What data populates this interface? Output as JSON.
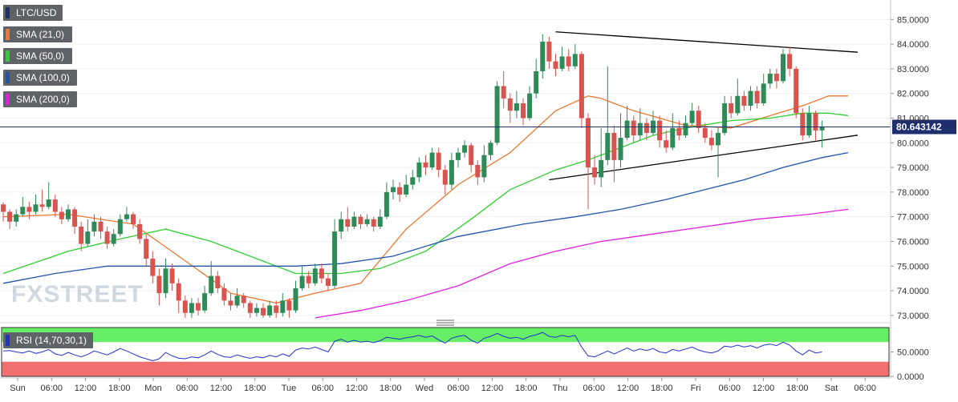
{
  "chart_data": {
    "type": "candlestick",
    "symbol": "LTC/USD",
    "last_price": "80.643142",
    "ylim": [
      72.8,
      85.4
    ],
    "yticks": [
      "85.0000",
      "84.0000",
      "83.0000",
      "82.0000",
      "81.0000",
      "80.0000",
      "79.0000",
      "78.0000",
      "77.0000",
      "76.0000",
      "75.0000",
      "74.0000",
      "73.0000"
    ],
    "x_ticks": [
      "Sun",
      "06:00",
      "12:00",
      "18:00",
      "Mon",
      "06:00",
      "12:00",
      "18:00",
      "Tue",
      "06:00",
      "12:00",
      "18:00",
      "Wed",
      "06:00",
      "12:00",
      "18:00",
      "Thu",
      "06:00",
      "12:00",
      "18:00",
      "Fri",
      "06:00",
      "12:00",
      "18:00",
      "Sat",
      "06:00"
    ],
    "candles": [
      [
        77.5,
        77.2,
        77.6,
        76.8
      ],
      [
        77.2,
        76.8,
        77.3,
        76.5
      ],
      [
        76.8,
        77.1,
        77.3,
        76.6
      ],
      [
        77.1,
        77.4,
        77.8,
        77.0
      ],
      [
        77.4,
        77.2,
        77.6,
        76.9
      ],
      [
        77.2,
        77.5,
        77.9,
        77.1
      ],
      [
        77.5,
        77.4,
        78.1,
        77.2
      ],
      [
        77.4,
        77.7,
        78.4,
        77.3
      ],
      [
        77.7,
        77.2,
        77.9,
        77.0
      ],
      [
        77.2,
        76.9,
        77.4,
        76.7
      ],
      [
        76.9,
        77.3,
        77.5,
        76.8
      ],
      [
        77.3,
        76.6,
        77.4,
        76.3
      ],
      [
        76.6,
        75.9,
        76.8,
        75.6
      ],
      [
        75.9,
        76.4,
        76.9,
        75.8
      ],
      [
        76.4,
        76.8,
        77.1,
        76.2
      ],
      [
        76.8,
        76.4,
        77.0,
        76.1
      ],
      [
        76.4,
        75.9,
        76.6,
        75.7
      ],
      [
        75.9,
        76.3,
        76.5,
        75.8
      ],
      [
        76.3,
        76.9,
        77.1,
        76.2
      ],
      [
        76.9,
        77.1,
        77.4,
        76.8
      ],
      [
        77.1,
        76.7,
        77.2,
        76.5
      ],
      [
        76.7,
        76.1,
        76.9,
        75.9
      ],
      [
        76.1,
        75.3,
        76.3,
        75.0
      ],
      [
        75.3,
        74.6,
        75.6,
        74.3
      ],
      [
        74.6,
        73.9,
        74.9,
        73.4
      ],
      [
        73.9,
        74.9,
        75.3,
        73.7
      ],
      [
        74.9,
        74.3,
        75.1,
        74.0
      ],
      [
        74.3,
        73.6,
        74.5,
        73.1
      ],
      [
        73.6,
        73.1,
        73.8,
        72.9
      ],
      [
        73.1,
        73.5,
        73.7,
        72.9
      ],
      [
        73.5,
        73.2,
        73.7,
        73.0
      ],
      [
        73.2,
        73.9,
        74.2,
        73.1
      ],
      [
        73.9,
        74.6,
        75.2,
        73.8
      ],
      [
        74.6,
        74.1,
        74.8,
        73.9
      ],
      [
        74.1,
        73.6,
        74.3,
        73.4
      ],
      [
        73.6,
        73.4,
        73.9,
        73.2
      ],
      [
        73.4,
        73.8,
        74.1,
        73.3
      ],
      [
        73.8,
        73.5,
        73.9,
        73.3
      ],
      [
        73.5,
        73.1,
        73.6,
        72.9
      ],
      [
        73.1,
        73.3,
        73.5,
        72.95
      ],
      [
        73.3,
        73.0,
        73.5,
        72.9
      ],
      [
        73.0,
        73.4,
        73.6,
        72.9
      ],
      [
        73.4,
        73.1,
        73.6,
        72.9
      ],
      [
        73.1,
        73.6,
        73.9,
        72.95
      ],
      [
        73.6,
        73.2,
        73.7,
        72.9
      ],
      [
        73.2,
        74.1,
        74.4,
        73.1
      ],
      [
        74.1,
        74.6,
        75.0,
        74.0
      ],
      [
        74.6,
        74.3,
        74.8,
        74.1
      ],
      [
        74.3,
        74.9,
        75.1,
        74.2
      ],
      [
        74.9,
        74.5,
        75.1,
        74.3
      ],
      [
        74.5,
        74.2,
        74.7,
        74.0
      ],
      [
        74.2,
        76.4,
        76.9,
        74.1
      ],
      [
        76.4,
        76.9,
        77.2,
        76.1
      ],
      [
        76.9,
        76.6,
        77.4,
        76.4
      ],
      [
        76.6,
        77.0,
        77.2,
        76.5
      ],
      [
        77.0,
        76.7,
        77.1,
        76.5
      ],
      [
        76.7,
        76.9,
        77.1,
        76.6
      ],
      [
        76.9,
        76.6,
        77.0,
        76.4
      ],
      [
        76.6,
        77.0,
        77.3,
        76.5
      ],
      [
        77.0,
        78.0,
        78.4,
        76.9
      ],
      [
        78.0,
        78.2,
        78.5,
        77.7
      ],
      [
        78.2,
        77.9,
        78.4,
        77.6
      ],
      [
        77.9,
        78.3,
        78.7,
        77.8
      ],
      [
        78.3,
        78.6,
        78.9,
        78.1
      ],
      [
        78.6,
        79.2,
        79.4,
        78.4
      ],
      [
        79.2,
        79.0,
        79.5,
        78.7
      ],
      [
        79.0,
        79.6,
        79.8,
        78.9
      ],
      [
        79.6,
        78.9,
        79.8,
        78.6
      ],
      [
        78.9,
        78.3,
        79.1,
        77.9
      ],
      [
        78.3,
        79.3,
        79.6,
        78.1
      ],
      [
        79.3,
        79.6,
        79.8,
        79.0
      ],
      [
        79.6,
        79.9,
        80.1,
        79.4
      ],
      [
        79.9,
        79.1,
        80.0,
        78.8
      ],
      [
        79.1,
        78.6,
        79.3,
        78.3
      ],
      [
        78.6,
        79.5,
        79.9,
        78.4
      ],
      [
        79.5,
        80.0,
        80.1,
        79.3
      ],
      [
        80.0,
        82.3,
        82.5,
        79.9
      ],
      [
        82.3,
        81.8,
        82.9,
        81.4
      ],
      [
        81.8,
        81.3,
        82.0,
        80.8
      ],
      [
        81.3,
        81.6,
        82.1,
        81.0
      ],
      [
        81.6,
        81.0,
        81.8,
        80.7
      ],
      [
        81.0,
        82.0,
        82.3,
        80.9
      ],
      [
        82.0,
        82.9,
        83.4,
        81.8
      ],
      [
        82.9,
        84.1,
        84.4,
        82.6
      ],
      [
        84.1,
        83.3,
        84.3,
        83.0
      ],
      [
        83.3,
        83.0,
        83.6,
        82.7
      ],
      [
        83.0,
        83.5,
        83.9,
        82.9
      ],
      [
        83.5,
        83.1,
        83.8,
        82.9
      ],
      [
        83.1,
        83.6,
        84.0,
        83.0
      ],
      [
        83.6,
        81.0,
        83.7,
        80.6
      ],
      [
        81.0,
        79.0,
        81.2,
        77.3
      ],
      [
        79.0,
        78.6,
        79.5,
        78.3
      ],
      [
        78.6,
        79.3,
        80.6,
        78.2
      ],
      [
        79.3,
        80.4,
        83.1,
        79.1
      ],
      [
        80.4,
        79.3,
        80.7,
        78.4
      ],
      [
        79.3,
        80.2,
        81.2,
        79.0
      ],
      [
        80.2,
        80.9,
        81.5,
        80.1
      ],
      [
        80.9,
        80.3,
        81.1,
        80.0
      ],
      [
        80.3,
        80.8,
        81.4,
        80.1
      ],
      [
        80.8,
        80.4,
        81.0,
        80.1
      ],
      [
        80.4,
        80.9,
        81.3,
        80.3
      ],
      [
        80.9,
        80.1,
        81.1,
        79.8
      ],
      [
        80.1,
        79.8,
        80.5,
        79.6
      ],
      [
        79.8,
        80.6,
        81.2,
        79.7
      ],
      [
        80.6,
        80.3,
        80.9,
        80.1
      ],
      [
        80.3,
        80.8,
        81.1,
        80.2
      ],
      [
        80.8,
        81.3,
        81.6,
        80.7
      ],
      [
        81.3,
        80.6,
        81.5,
        80.4
      ],
      [
        80.6,
        80.2,
        80.8,
        80.0
      ],
      [
        80.2,
        79.9,
        80.5,
        79.7
      ],
      [
        79.9,
        80.4,
        80.6,
        78.6
      ],
      [
        80.4,
        81.6,
        81.9,
        80.3
      ],
      [
        81.6,
        81.2,
        81.9,
        81.0
      ],
      [
        81.2,
        81.9,
        82.6,
        81.1
      ],
      [
        81.9,
        81.5,
        82.1,
        81.3
      ],
      [
        81.5,
        82.1,
        82.3,
        81.3
      ],
      [
        82.1,
        81.6,
        82.3,
        81.4
      ],
      [
        81.6,
        82.4,
        82.8,
        81.5
      ],
      [
        82.4,
        82.8,
        83.0,
        82.2
      ],
      [
        82.8,
        82.5,
        83.0,
        82.2
      ],
      [
        82.5,
        83.6,
        83.8,
        82.4
      ],
      [
        83.6,
        83.0,
        83.9,
        82.7
      ],
      [
        83.0,
        81.2,
        83.1,
        81.0
      ],
      [
        81.2,
        80.3,
        81.4,
        80.1
      ],
      [
        80.3,
        81.2,
        81.5,
        80.2
      ],
      [
        81.2,
        80.5,
        81.3,
        80.1
      ],
      [
        80.5,
        80.64,
        80.9,
        79.8
      ]
    ],
    "series": [
      {
        "name": "SMA (21,0)",
        "color": "#f0772f",
        "x": [
          0,
          10,
          20,
          27,
          35,
          42,
          48,
          55,
          62,
          70,
          78,
          85,
          90,
          92,
          97,
          105,
          112,
          118,
          123,
          127,
          130
        ],
        "values": [
          77.0,
          77.1,
          76.7,
          75.4,
          73.9,
          73.5,
          73.9,
          74.3,
          76.5,
          78.3,
          79.6,
          81.3,
          81.9,
          81.8,
          81.3,
          80.7,
          80.6,
          81.1,
          81.5,
          81.9,
          81.9
        ]
      },
      {
        "name": "SMA (50,0)",
        "color": "#2fcf2f",
        "x": [
          0,
          10,
          18,
          25,
          32,
          40,
          45,
          52,
          58,
          65,
          72,
          78,
          85,
          90,
          95,
          100,
          105,
          112,
          118,
          123,
          127,
          130
        ],
        "values": [
          74.7,
          75.6,
          76.1,
          76.5,
          76.0,
          75.2,
          74.7,
          74.7,
          74.9,
          75.6,
          76.9,
          78.1,
          78.9,
          79.3,
          79.8,
          80.3,
          80.6,
          80.9,
          81.0,
          81.2,
          81.2,
          81.1
        ]
      },
      {
        "name": "SMA (100,0)",
        "color": "#2255aa",
        "x": [
          0,
          8,
          16,
          25,
          35,
          45,
          52,
          60,
          70,
          80,
          88,
          95,
          102,
          108,
          114,
          120,
          126,
          130
        ],
        "values": [
          74.3,
          74.7,
          75.0,
          75.0,
          75.0,
          75.0,
          75.1,
          75.4,
          76.2,
          76.7,
          77.0,
          77.3,
          77.7,
          78.1,
          78.5,
          79.0,
          79.4,
          79.6
        ]
      },
      {
        "name": "SMA (200,0)",
        "color": "#e020e0",
        "x": [
          48,
          55,
          62,
          70,
          78,
          85,
          92,
          100,
          108,
          116,
          124,
          130
        ],
        "values": [
          72.9,
          73.2,
          73.6,
          74.2,
          75.1,
          75.6,
          76.0,
          76.3,
          76.6,
          76.9,
          77.1,
          77.3
        ]
      }
    ],
    "trendlines": [
      {
        "x": [
          85,
          130
        ],
        "values": [
          84.5,
          83.7
        ]
      },
      {
        "x": [
          84,
          130
        ],
        "values": [
          78.5,
          80.25
        ]
      }
    ],
    "rsi": {
      "label": "RSI (14,70,30,1)",
      "yticks": [
        "50.0000",
        "0.0000"
      ],
      "ylim": [
        0,
        100
      ],
      "values": [
        52,
        53,
        50,
        48,
        52,
        47,
        50,
        55,
        46,
        43,
        49,
        44,
        40,
        45,
        52,
        48,
        44,
        50,
        57,
        52,
        46,
        40,
        36,
        32,
        36,
        49,
        42,
        37,
        36,
        40,
        38,
        44,
        52,
        45,
        40,
        39,
        44,
        40,
        37,
        40,
        38,
        43,
        40,
        46,
        41,
        54,
        58,
        56,
        60,
        55,
        50,
        72,
        76,
        70,
        74,
        70,
        72,
        69,
        73,
        80,
        78,
        76,
        79,
        81,
        84,
        80,
        83,
        75,
        68,
        78,
        82,
        84,
        74,
        68,
        78,
        82,
        88,
        82,
        78,
        80,
        76,
        82,
        85,
        90,
        82,
        80,
        84,
        81,
        84,
        60,
        42,
        40,
        46,
        52,
        46,
        52,
        58,
        52,
        56,
        53,
        57,
        50,
        48,
        55,
        52,
        56,
        60,
        54,
        50,
        48,
        52,
        62,
        60,
        64,
        60,
        63,
        58,
        64,
        66,
        63,
        70,
        64,
        52,
        44,
        54,
        48,
        50
      ]
    }
  }
}
